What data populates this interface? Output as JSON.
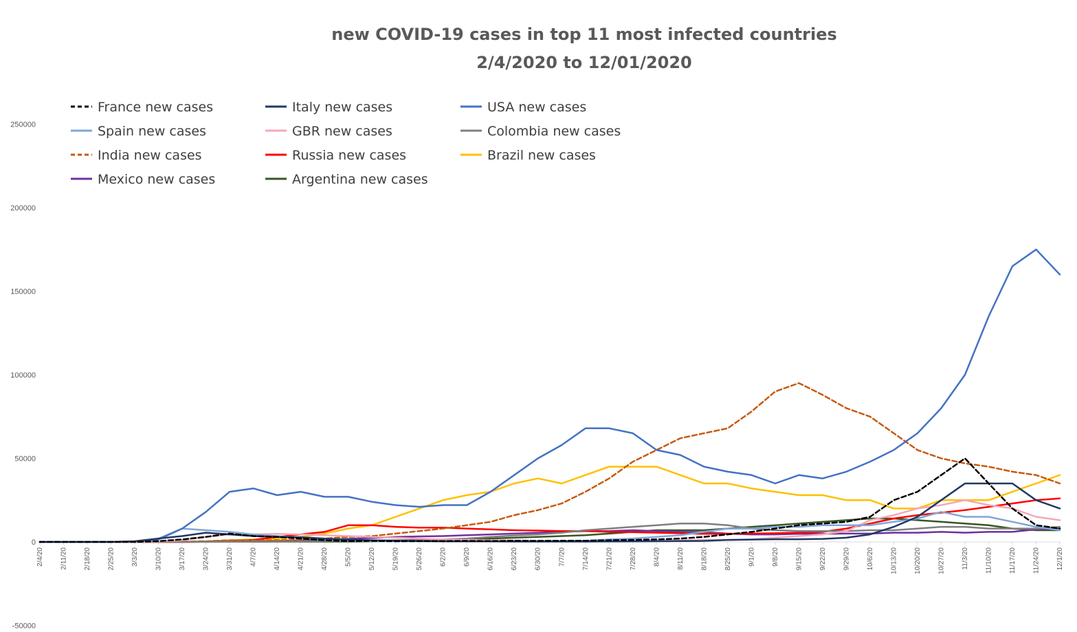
{
  "chart_data": {
    "type": "line",
    "title_lines": [
      "new COVID-19 cases in top 11 most infected countries",
      "2/4/2020 to 12/01/2020"
    ],
    "xlabel": "",
    "ylabel": "",
    "ylim": [
      -50000,
      250000
    ],
    "yticks": [
      -50000,
      0,
      50000,
      100000,
      150000,
      200000,
      250000
    ],
    "xticks": [
      "2/4/20",
      "2/11/20",
      "2/18/20",
      "2/25/20",
      "3/3/20",
      "3/10/20",
      "3/17/20",
      "3/24/20",
      "3/31/20",
      "4/7/20",
      "4/14/20",
      "4/21/20",
      "4/28/20",
      "5/5/20",
      "5/12/20",
      "5/19/20",
      "5/26/20",
      "6/2/20",
      "6/9/20",
      "6/16/20",
      "6/23/20",
      "6/30/20",
      "7/7/20",
      "7/14/20",
      "7/21/20",
      "7/28/20",
      "8/4/20",
      "8/11/20",
      "8/18/20",
      "8/25/20",
      "9/1/20",
      "9/8/20",
      "9/15/20",
      "9/22/20",
      "9/29/20",
      "10/6/20",
      "10/13/20",
      "10/20/20",
      "10/27/20",
      "11/3/20",
      "11/10/20",
      "11/17/20",
      "11/24/20",
      "12/1/20"
    ],
    "grid": false,
    "legend_position": "top-left",
    "note": "values are weekly approximations (one point per x tick) read from the figure",
    "series": [
      {
        "name": "France new cases",
        "color": "#000000",
        "dash": "dashed",
        "values": [
          0,
          0,
          0,
          0,
          0,
          500,
          1500,
          3000,
          5000,
          3500,
          3000,
          2000,
          1000,
          500,
          600,
          400,
          500,
          500,
          600,
          500,
          700,
          600,
          700,
          700,
          1000,
          1200,
          1500,
          2000,
          3000,
          4500,
          6000,
          8000,
          10000,
          11000,
          12000,
          15000,
          25000,
          30000,
          40000,
          50000,
          35000,
          20000,
          10000,
          8000
        ]
      },
      {
        "name": "Italy new cases",
        "color": "#1f3864",
        "dash": "solid",
        "values": [
          0,
          0,
          0,
          0,
          400,
          2000,
          3500,
          5500,
          4500,
          3500,
          3000,
          2800,
          2000,
          1300,
          1000,
          700,
          500,
          300,
          300,
          300,
          200,
          200,
          200,
          200,
          250,
          300,
          400,
          500,
          600,
          1200,
          1400,
          1600,
          1600,
          1800,
          2500,
          4500,
          9000,
          15000,
          25000,
          35000,
          35000,
          35000,
          25000,
          20000
        ]
      },
      {
        "name": "USA new cases",
        "color": "#4472c4",
        "dash": "solid",
        "values": [
          0,
          0,
          0,
          0,
          300,
          1500,
          8000,
          18000,
          30000,
          32000,
          28000,
          30000,
          27000,
          27000,
          24000,
          22000,
          21000,
          22000,
          22000,
          30000,
          40000,
          50000,
          58000,
          68000,
          68000,
          65000,
          55000,
          52000,
          45000,
          42000,
          40000,
          35000,
          40000,
          38000,
          42000,
          48000,
          55000,
          65000,
          80000,
          100000,
          135000,
          165000,
          175000,
          160000
        ]
      },
      {
        "name": "Spain new cases",
        "color": "#7fa6d8",
        "dash": "solid",
        "values": [
          0,
          0,
          0,
          0,
          200,
          2000,
          8000,
          7000,
          6000,
          4500,
          3500,
          2500,
          1500,
          700,
          400,
          300,
          300,
          300,
          300,
          300,
          300,
          400,
          500,
          700,
          1500,
          2000,
          3000,
          4000,
          6000,
          8000,
          8000,
          9000,
          9000,
          10000,
          10000,
          10000,
          12000,
          14000,
          18000,
          15000,
          15000,
          12000,
          9000,
          7000
        ]
      },
      {
        "name": "GBR new cases",
        "color": "#f4a7b9",
        "dash": "solid",
        "values": [
          0,
          0,
          0,
          0,
          50,
          300,
          1000,
          3000,
          4500,
          4500,
          4800,
          4500,
          4000,
          3500,
          3000,
          2500,
          2000,
          1500,
          1200,
          1000,
          900,
          700,
          600,
          700,
          700,
          800,
          900,
          1000,
          1100,
          1200,
          1500,
          2500,
          3500,
          4500,
          6500,
          13000,
          16000,
          20000,
          22000,
          25000,
          22000,
          20000,
          15000,
          13000
        ]
      },
      {
        "name": "Colombia new cases",
        "color": "#7f7f7f",
        "dash": "solid",
        "values": [
          0,
          0,
          0,
          0,
          0,
          0,
          50,
          100,
          100,
          200,
          200,
          300,
          400,
          600,
          800,
          1000,
          1200,
          1500,
          2000,
          3000,
          3800,
          4500,
          5500,
          7000,
          8000,
          9000,
          10000,
          11000,
          11000,
          10000,
          8000,
          7000,
          6500,
          6500,
          6500,
          7000,
          7000,
          8000,
          9000,
          9000,
          8000,
          8000,
          8000,
          9000
        ]
      },
      {
        "name": "India new cases",
        "color": "#c55a11",
        "dash": "dashed",
        "values": [
          0,
          0,
          0,
          0,
          0,
          100,
          200,
          400,
          1000,
          1000,
          1000,
          1500,
          2000,
          3000,
          3500,
          5000,
          6500,
          8000,
          10000,
          12000,
          16000,
          19000,
          23000,
          30000,
          38000,
          48000,
          55000,
          62000,
          65000,
          68000,
          78000,
          90000,
          95000,
          88000,
          80000,
          75000,
          65000,
          55000,
          50000,
          47000,
          45000,
          42000,
          40000,
          35000
        ]
      },
      {
        "name": "Russia new cases",
        "color": "#ff0000",
        "dash": "solid",
        "values": [
          0,
          0,
          0,
          0,
          0,
          0,
          0,
          200,
          500,
          1200,
          3000,
          4500,
          6000,
          10000,
          10000,
          9000,
          8500,
          8500,
          8000,
          7500,
          7000,
          6800,
          6500,
          6500,
          6000,
          5800,
          5500,
          5200,
          4800,
          4800,
          5000,
          5200,
          5500,
          6000,
          8000,
          11000,
          14000,
          16000,
          17500,
          19000,
          21000,
          23000,
          25000,
          26000
        ]
      },
      {
        "name": "Brazil new cases",
        "color": "#ffc000",
        "dash": "solid",
        "values": [
          0,
          0,
          0,
          0,
          0,
          20,
          100,
          300,
          1000,
          1500,
          2000,
          3000,
          5000,
          8000,
          10000,
          15000,
          20000,
          25000,
          28000,
          30000,
          35000,
          38000,
          35000,
          40000,
          45000,
          45000,
          45000,
          40000,
          35000,
          35000,
          32000,
          30000,
          28000,
          28000,
          25000,
          25000,
          20000,
          20000,
          25000,
          25000,
          25000,
          30000,
          35000,
          40000
        ]
      },
      {
        "name": "Mexico new cases",
        "color": "#7030a0",
        "dash": "solid",
        "values": [
          0,
          0,
          0,
          0,
          0,
          0,
          50,
          100,
          200,
          400,
          600,
          900,
          1200,
          1800,
          2400,
          3000,
          3300,
          3500,
          4000,
          4500,
          5000,
          5500,
          6000,
          6500,
          6500,
          7000,
          6500,
          6000,
          5800,
          5000,
          4500,
          4500,
          4800,
          4800,
          5000,
          5000,
          5500,
          5500,
          6000,
          5500,
          6000,
          6000,
          7500,
          8000
        ]
      },
      {
        "name": "Argentina new cases",
        "color": "#375623",
        "dash": "solid",
        "values": [
          0,
          0,
          0,
          0,
          0,
          0,
          10,
          50,
          100,
          100,
          150,
          150,
          150,
          200,
          300,
          500,
          800,
          1000,
          1500,
          2000,
          2500,
          3000,
          3500,
          4000,
          5000,
          6000,
          7000,
          7000,
          7000,
          8000,
          9000,
          10000,
          11000,
          12000,
          13000,
          14000,
          14000,
          13000,
          12000,
          11000,
          10000,
          8000,
          7000,
          7000
        ]
      }
    ]
  }
}
